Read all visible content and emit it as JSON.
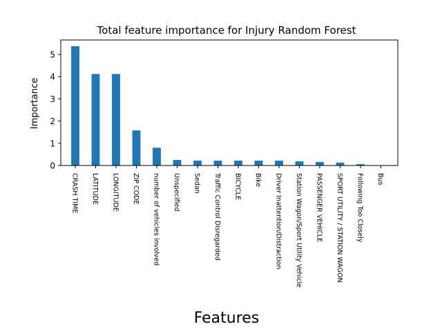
{
  "chart_data": {
    "type": "bar",
    "title": "Total feature importance for Injury Random Forest",
    "xlabel": "Features",
    "ylabel": "Importance",
    "ylim": [
      0,
      5.65
    ],
    "yticks": [
      0,
      1,
      2,
      3,
      4,
      5
    ],
    "grid": false,
    "bar_color": "#1f77b4",
    "categories": [
      "CRASH TIME",
      "LATITUDE",
      "LONGITUDE",
      "ZIP CODE",
      "number of vehicles involved",
      "Unspecified",
      "Sedan",
      "Traffic Control Disregarded",
      "BICYCLE",
      "Bike",
      "Driver Inattention/Distraction",
      "Station Wagon/Sport Utility Vehicle",
      "PASSENGER VEHICLE",
      "SPORT UTILITY / STATION WAGON",
      "Following Too Closely",
      "Bus"
    ],
    "values": [
      5.37,
      4.12,
      4.12,
      1.58,
      0.8,
      0.25,
      0.22,
      0.22,
      0.22,
      0.22,
      0.22,
      0.19,
      0.16,
      0.13,
      0.06,
      0.01
    ]
  }
}
